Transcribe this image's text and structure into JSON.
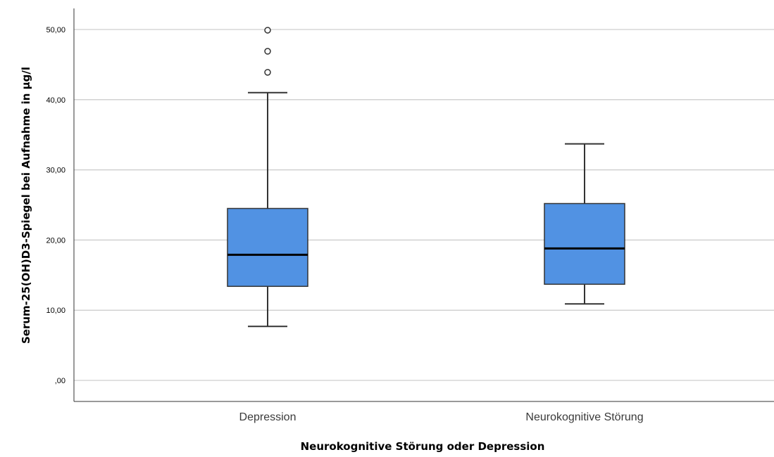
{
  "chart_data": {
    "type": "box",
    "xlabel": "Neurokognitive Störung oder Depression",
    "ylabel": "Serum-25(OH)D3-Spiegel bei Aufnahme in µg/l",
    "ylim": [
      -3,
      53
    ],
    "yticks": [
      0,
      10,
      20,
      30,
      40,
      50
    ],
    "ytick_labels": [
      ",00",
      "10,00",
      "20,00",
      "30,00",
      "40,00",
      "50,00"
    ],
    "grid": true,
    "box_color": "#5192e3",
    "categories": [
      "Depression",
      "Neurokognitive Störung"
    ],
    "boxes": [
      {
        "category": "Depression",
        "min": 7.7,
        "q1": 13.4,
        "median": 17.9,
        "q3": 24.5,
        "max": 41.0,
        "outliers": [
          43.9,
          46.9,
          49.9
        ]
      },
      {
        "category": "Neurokognitive Störung",
        "min": 10.9,
        "q1": 13.7,
        "median": 18.8,
        "q3": 25.2,
        "max": 33.7,
        "outliers": []
      }
    ]
  }
}
